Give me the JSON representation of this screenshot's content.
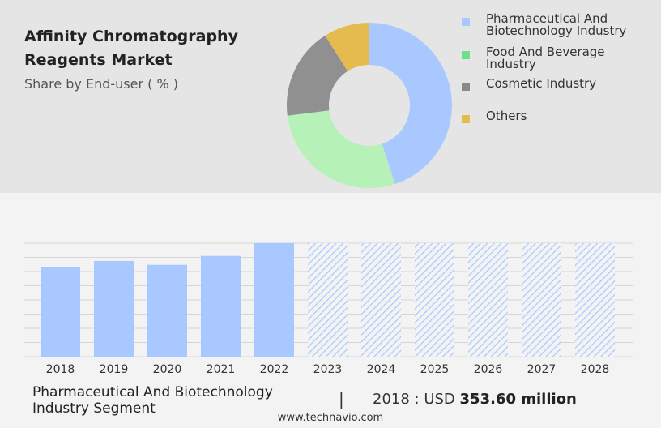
{
  "header": {
    "title_line1": "Affinity Chromatography",
    "title_line2": "Reagents Market",
    "subtitle": "Share by End-user ( % )"
  },
  "donut": {
    "type": "pie",
    "segments": [
      {
        "label_line1": "Pharmaceutical And",
        "label_line2": "Biotechnology Industry",
        "value": 45,
        "color": "#a8c8ff"
      },
      {
        "label_line1": "Food And Beverage",
        "label_line2": "Industry",
        "value": 28,
        "color": "#b6f2b8"
      },
      {
        "label_line1": "Cosmetic Industry",
        "label_line2": "",
        "value": 18,
        "color": "#909090"
      },
      {
        "label_line1": "Others",
        "label_line2": "",
        "value": 9,
        "color": "#e5bb4f"
      }
    ],
    "legend_swatch_colors": [
      "#a8c8ff",
      "#6fe08a",
      "#8a8a8a",
      "#e5bb4f"
    ]
  },
  "chart_data": {
    "type": "bar",
    "categories": [
      "2018",
      "2019",
      "2020",
      "2021",
      "2022",
      "2023",
      "2024",
      "2025",
      "2026",
      "2027",
      "2028"
    ],
    "values": [
      353.6,
      376,
      361,
      396,
      446,
      null,
      null,
      null,
      null,
      null,
      null
    ],
    "forecast_from": "2023",
    "bar_color": "#a8c8ff",
    "forecast_hatch_color": "#a8c8ff",
    "grid": true
  },
  "footer": {
    "segment_line1": "Pharmaceutical And Biotechnology",
    "segment_line2": "Industry Segment",
    "separator": "|",
    "value_prefix": "2018 : USD",
    "value_bold": "353.60 million",
    "source": "www.technavio.com"
  }
}
